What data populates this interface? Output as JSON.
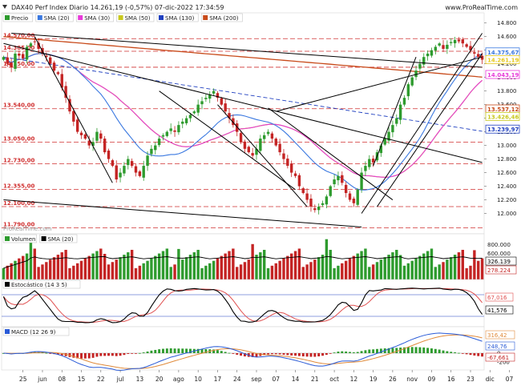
{
  "header": {
    "title": "DAX40 Perf Index Diario 14.261,19 (-0,57%) 07-dic-2022 17:34:59",
    "site": "www.ProRealTime.com",
    "watermark": "ProRealTime.com",
    "menu_icon": "caret-down-icon"
  },
  "colors": {
    "up": "#2e9b2e",
    "down": "#c42424",
    "sma20": "#3a78e0",
    "sma30": "#e83ad9",
    "sma50": "#c8c81e",
    "sma130": "#2040c0",
    "sma200": "#c84a1a",
    "trendline": "#000000",
    "hline": "#d03030",
    "stoch_k": "#000000",
    "stoch_d": "#e05050",
    "macd_line": "#2a5bd7",
    "macd_signal": "#e08a3a"
  },
  "chart_data": [
    {
      "type": "candlestick",
      "panel": "price",
      "legend": [
        "Precio",
        "SMA (20)",
        "SMA (30)",
        "SMA (50)",
        "SMA (130)",
        "SMA (200)"
      ],
      "ylim": [
        11700,
        14950
      ],
      "y_ticks": [
        12000,
        12200,
        12400,
        12600,
        12800,
        13000,
        13200,
        13400,
        13600,
        13800,
        14000,
        14200,
        14400,
        14600,
        14800
      ],
      "y_tick_labels": [
        "12.000",
        "12.200",
        "12.400",
        "12.600",
        "12.800",
        "13.000",
        "13.200",
        "13.400",
        "13.600",
        "13.800",
        "14.000",
        "14.200",
        "14.400",
        "14.600",
        "14.800"
      ],
      "horizontal_levels": [
        {
          "value": 14570,
          "label": "14.570,00"
        },
        {
          "value": 14385,
          "label": "14.385,00"
        },
        {
          "value": 14150,
          "label": "14.150,00"
        },
        {
          "value": 13540,
          "label": "13.540,00"
        },
        {
          "value": 13050,
          "label": "13.050,00"
        },
        {
          "value": 12730,
          "label": "12.730,00"
        },
        {
          "value": 12355,
          "label": "12.355,00"
        },
        {
          "value": 12100,
          "label": "12.100,00"
        },
        {
          "value": 11790,
          "label": "11.790,00"
        }
      ],
      "right_tags": [
        {
          "value": 14375.67,
          "label": "14.375,67",
          "color": "#3a78e0"
        },
        {
          "value": 14261.19,
          "label": "14.261,19",
          "color": "#e6c81e"
        },
        {
          "value": 14043.19,
          "label": "14.043,19",
          "color": "#e83ad9"
        },
        {
          "value": 13537.12,
          "label": "13.537,12",
          "color": "#c84a1a"
        },
        {
          "value": 13426.46,
          "label": "13.426,46",
          "color": "#c8c81e"
        },
        {
          "value": 13239.97,
          "label": "13.239,97",
          "color": "#2040c0"
        }
      ],
      "x_tick_labels": [
        "25",
        "jun",
        "08",
        "15",
        "22",
        "jul",
        "13",
        "20",
        "ago",
        "10",
        "17",
        "24",
        "sep",
        "07",
        "14",
        "21",
        "oct",
        "12",
        "19",
        "26",
        "nov",
        "09",
        "16",
        "23",
        "dic",
        "07"
      ],
      "x_tick_positions": [
        5,
        10,
        15,
        20,
        25,
        30,
        35,
        40,
        45,
        50,
        55,
        60,
        65,
        70,
        75,
        80,
        85,
        90,
        95,
        100,
        105,
        110,
        115,
        120,
        125,
        130
      ],
      "close": [
        14300,
        14200,
        14150,
        14350,
        14320,
        14280,
        14450,
        14500,
        14520,
        14420,
        14350,
        14300,
        14200,
        14100,
        14050,
        13850,
        13700,
        13500,
        13350,
        13200,
        13150,
        13100,
        13000,
        13050,
        13200,
        13100,
        12900,
        12800,
        12700,
        12500,
        12600,
        12700,
        12800,
        12700,
        12600,
        12550,
        12700,
        12850,
        12950,
        13000,
        13100,
        13150,
        13200,
        13250,
        13200,
        13300,
        13350,
        13400,
        13450,
        13500,
        13600,
        13650,
        13700,
        13750,
        13800,
        13700,
        13600,
        13500,
        13400,
        13300,
        13200,
        13050,
        12950,
        12900,
        12850,
        12950,
        13100,
        13150,
        13200,
        13100,
        13000,
        12900,
        12800,
        12700,
        12600,
        12550,
        12400,
        12300,
        12200,
        12100,
        12050,
        12100,
        12150,
        12250,
        12400,
        12500,
        12550,
        12450,
        12300,
        12200,
        12150,
        12350,
        12600,
        12700,
        12800,
        12750,
        12900,
        13000,
        13100,
        13200,
        13300,
        13400,
        13600,
        13700,
        13900,
        14000,
        14100,
        14200,
        14300,
        14350,
        14400,
        14450,
        14500,
        14420,
        14480,
        14520,
        14550,
        14530,
        14500,
        14450,
        14400,
        14350,
        14300,
        14261
      ],
      "volume_legend": [
        "Volumen",
        "SMA (20)"
      ],
      "volume_y_ticks": [
        800000,
        600000
      ],
      "volume_y_tick_labels": [
        "800.000",
        "600.000"
      ],
      "volume_tags": [
        {
          "label": "326.139",
          "color": "#000000"
        },
        {
          "label": "278.224",
          "color": "#c42424"
        }
      ],
      "stoch_legend": "Estocástico (14 3 5)",
      "stoch_tags": [
        {
          "label": "67,016",
          "color": "#e05050"
        },
        {
          "label": "41,576",
          "color": "#000000"
        }
      ],
      "macd_legend": "MACD (12 26 9)",
      "macd_y_ticks": [
        200,
        0,
        -200
      ],
      "macd_y_tick_labels": [
        "200",
        "0",
        "-200"
      ],
      "macd_tags": [
        {
          "label": "316,42",
          "color": "#e08a3a"
        },
        {
          "label": "248,76",
          "color": "#2a5bd7"
        },
        {
          "label": "-67,661",
          "color": "#c42424"
        }
      ]
    }
  ]
}
